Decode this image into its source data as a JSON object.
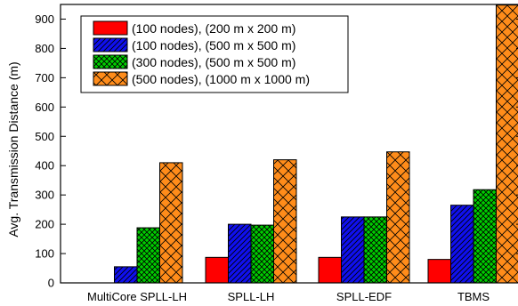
{
  "chart_data": {
    "type": "bar",
    "title": "",
    "xlabel": "",
    "ylabel": "Avg. Transmission Distance (m)",
    "ylim": [
      0,
      950
    ],
    "yticks": [
      0,
      100,
      200,
      300,
      400,
      500,
      600,
      700,
      800,
      900
    ],
    "categories": [
      "MultiCore SPLL-LH",
      "SPLL-LH",
      "SPLL-EDF",
      "TBMS"
    ],
    "series": [
      {
        "name": "(100 nodes), (200 m x 200 m)",
        "color": "#ff0000",
        "pattern": "solid",
        "values": [
          0,
          87,
          87,
          80
        ]
      },
      {
        "name": "(100 nodes), (500 m x 500 m)",
        "color": "#1010ee",
        "pattern": "diagonal-hatch",
        "values": [
          55,
          200,
          225,
          265
        ]
      },
      {
        "name": "(300 nodes), (500 m x 500 m)",
        "color": "#00cc00",
        "pattern": "checker",
        "values": [
          188,
          197,
          225,
          318
        ]
      },
      {
        "name": "(500 nodes), (1000 m x 1000 m)",
        "color": "#ff8c1a",
        "pattern": "cross-hatch",
        "values": [
          410,
          420,
          447,
          948
        ]
      }
    ],
    "legend_position": "top-left",
    "grid": false
  }
}
